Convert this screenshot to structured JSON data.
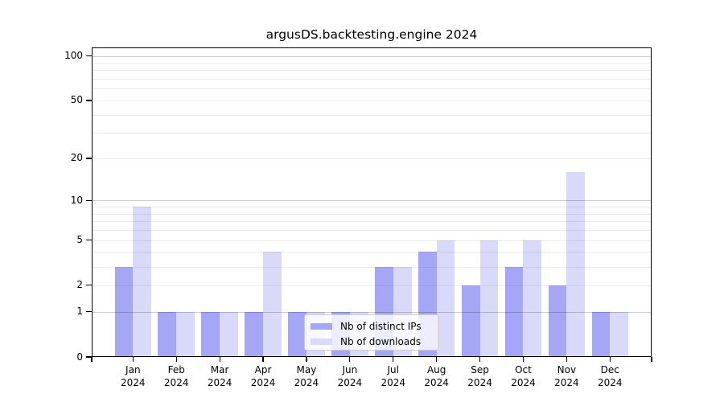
{
  "chart_data": {
    "type": "bar",
    "title": "argusDS.backtesting.engine 2024",
    "categories": [
      "Jan 2024",
      "Feb 2024",
      "Mar 2024",
      "Apr 2024",
      "May 2024",
      "Jun 2024",
      "Jul 2024",
      "Aug 2024",
      "Sep 2024",
      "Oct 2024",
      "Nov 2024",
      "Dec 2024"
    ],
    "series": [
      {
        "name": "Nb of distinct IPs",
        "color": "#a6a6f6",
        "values": [
          3,
          1,
          1,
          1,
          1,
          1,
          3,
          4,
          2,
          3,
          2,
          1
        ]
      },
      {
        "name": "Nb of downloads",
        "color": "#d9d9f9",
        "values": [
          9,
          1,
          1,
          4,
          1,
          1,
          3,
          5,
          5,
          5,
          16,
          1
        ]
      }
    ],
    "yscale": "log1p",
    "ylim": [
      0,
      114
    ],
    "yticks": [
      0,
      1,
      2,
      5,
      10,
      20,
      50,
      100
    ],
    "major_gridlines": [
      1,
      10,
      100
    ],
    "minor_gridlines": [
      2,
      3,
      4,
      5,
      6,
      7,
      8,
      9,
      20,
      30,
      40,
      50,
      60,
      70,
      80,
      90
    ],
    "grid": true,
    "legend": {
      "position": "lower center",
      "entries": [
        "Nb of distinct IPs",
        "Nb of downloads"
      ]
    },
    "colors": {
      "grid_major": "#cccccc",
      "grid_minor": "#ededed",
      "axis": "#000000",
      "background": "#ffffff",
      "legend_border": "#cbcbcb"
    }
  }
}
